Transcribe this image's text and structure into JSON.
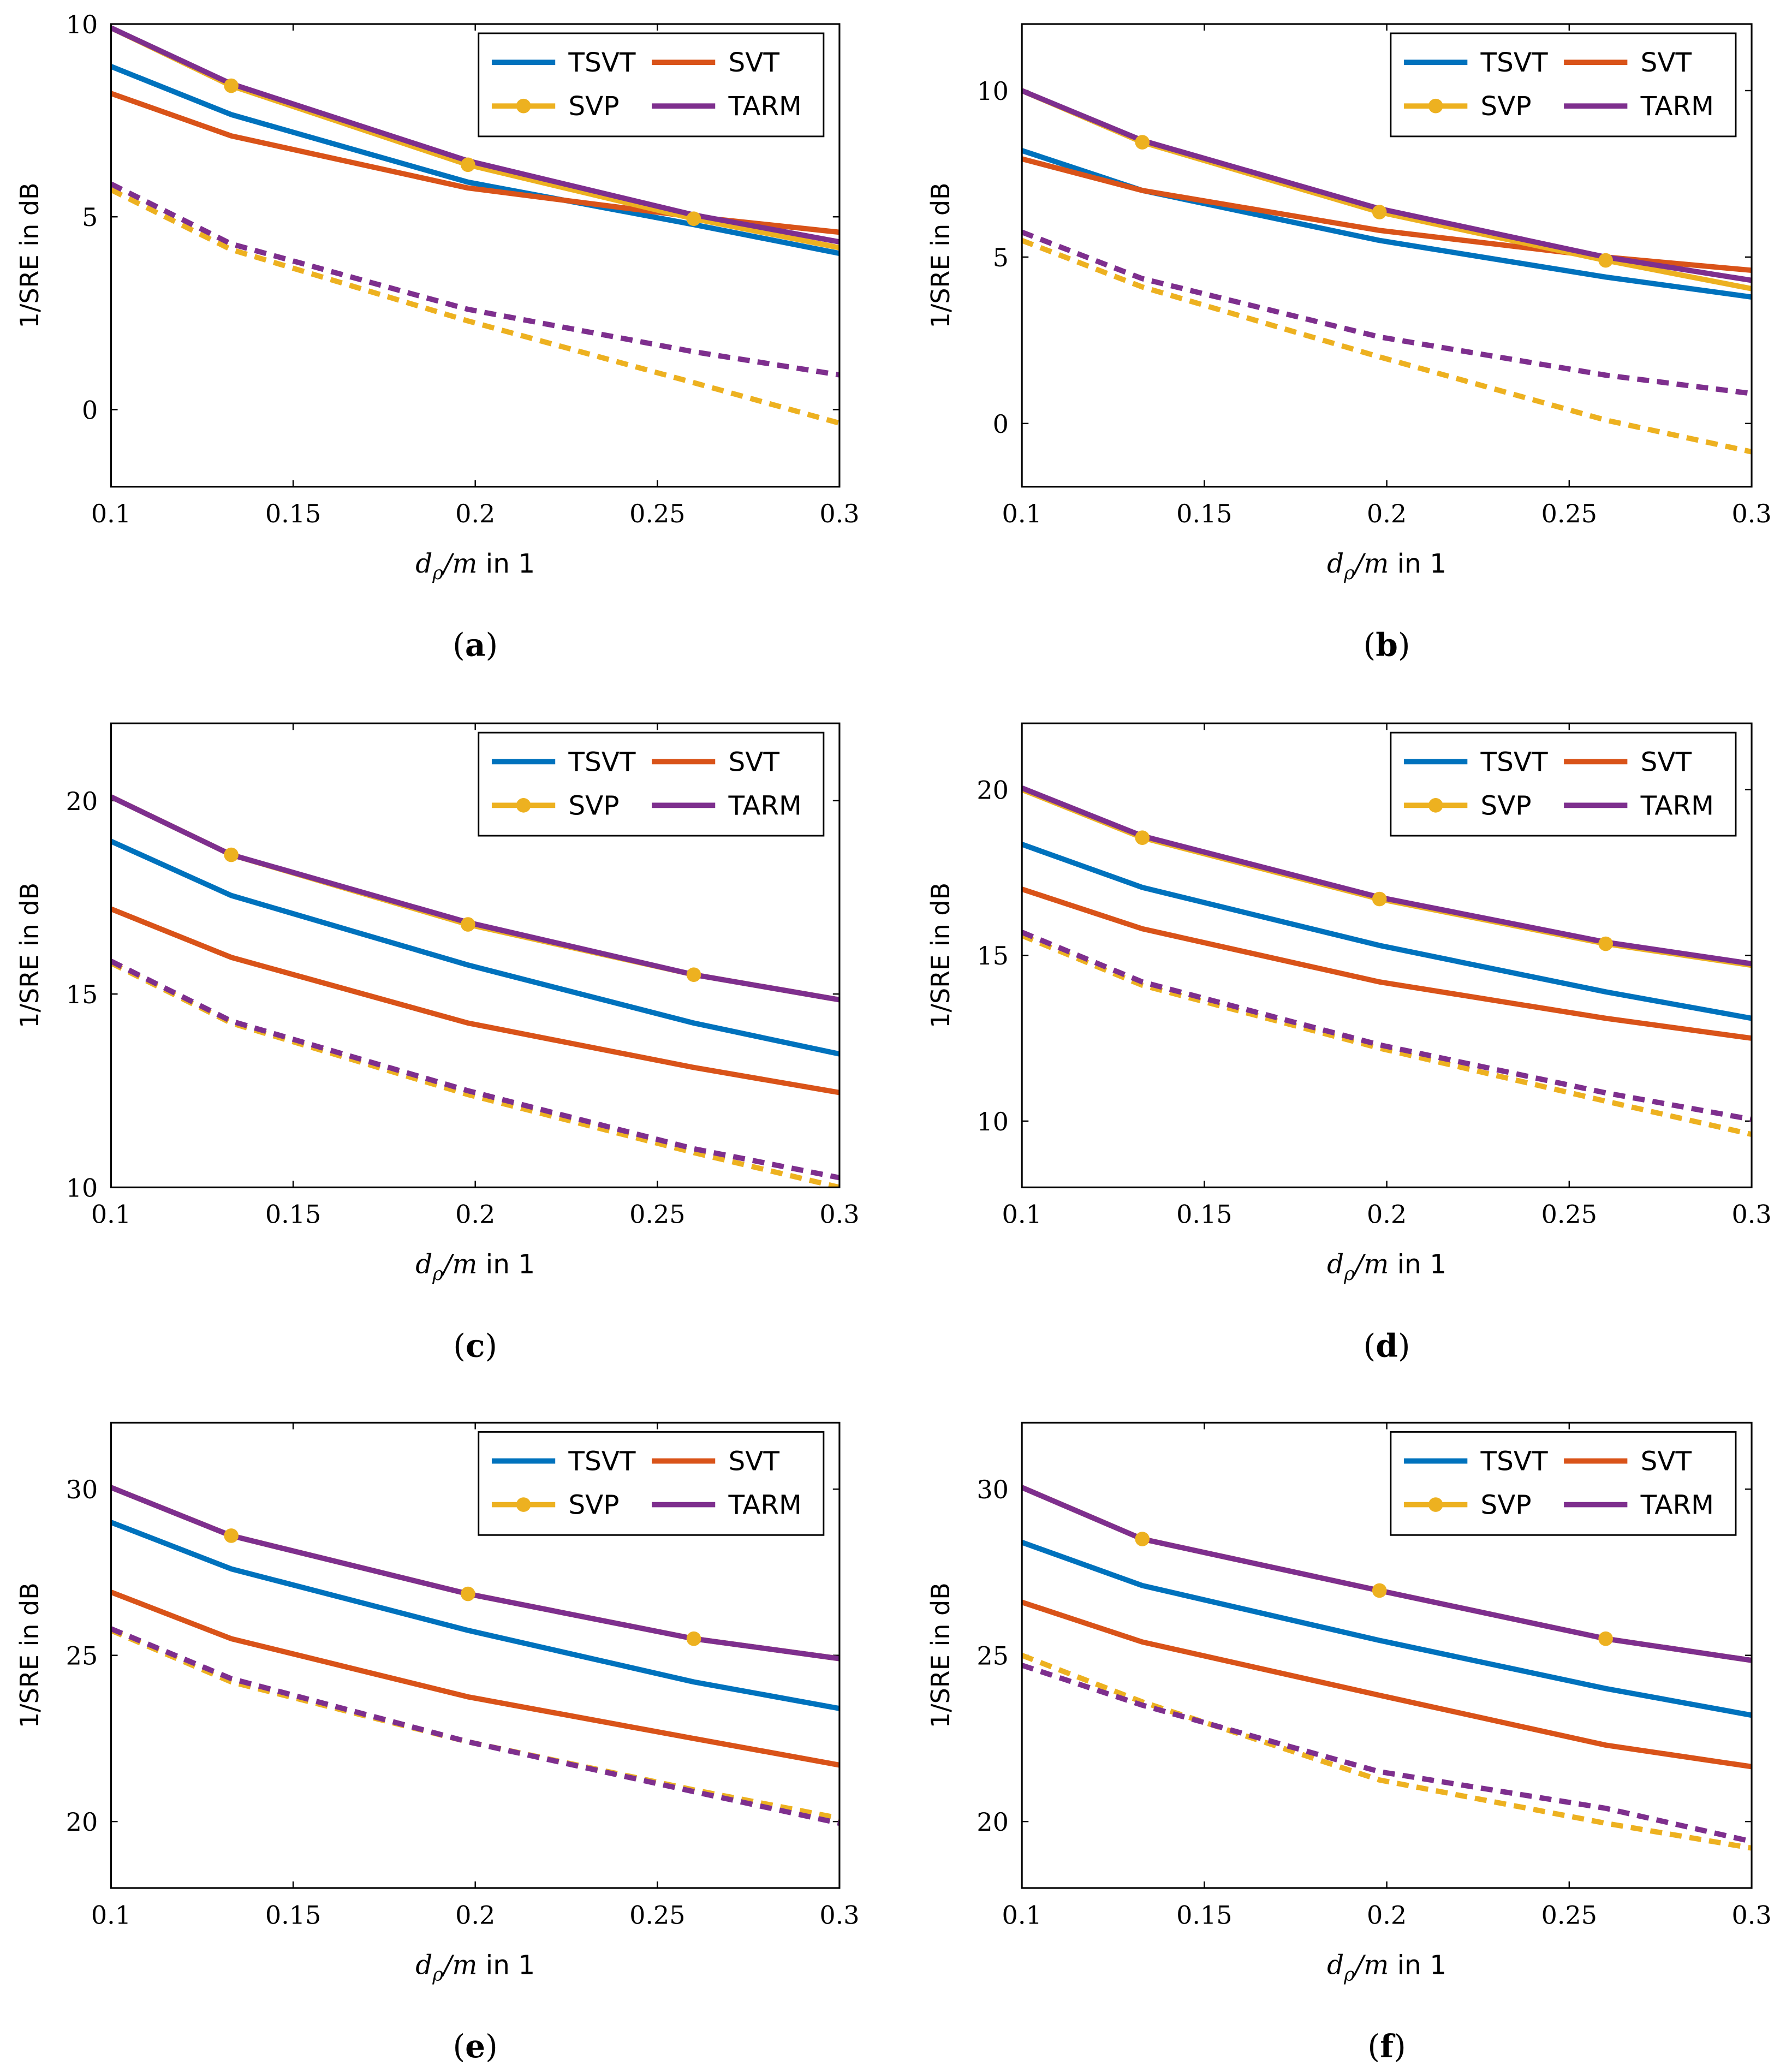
{
  "colors": {
    "TSVT": "#0072BD",
    "SVT": "#D95319",
    "SVP": "#EDB120",
    "TARM": "#7E2F8E"
  },
  "chart_data": [
    {
      "type": "line",
      "caption_letter": "a",
      "ylabel": "1/SRE in dB",
      "xlabel_parts": [
        "d",
        "ρ",
        "/m",
        " in 1"
      ],
      "xlim": [
        0.1,
        0.3
      ],
      "ylim": [
        -2,
        10
      ],
      "xticks": [
        0.1,
        0.15,
        0.2,
        0.25,
        0.3
      ],
      "xtick_labels": [
        "0.1",
        "0.15",
        "0.2",
        "0.25",
        "0.3"
      ],
      "yticks": [
        0,
        5,
        10
      ],
      "ytick_labels": [
        "0",
        "5",
        "10"
      ],
      "legend": [
        "TSVT",
        "SVT",
        "SVP",
        "TARM"
      ],
      "legend_placement": "top-right",
      "x": [
        0.1,
        0.133,
        0.198,
        0.26,
        0.3
      ],
      "series": [
        {
          "name": "TSVT",
          "style": "solid",
          "values": [
            8.9,
            7.65,
            5.9,
            4.8,
            4.05
          ]
        },
        {
          "name": "SVT",
          "style": "solid",
          "values": [
            8.2,
            7.1,
            5.75,
            5.0,
            4.6
          ]
        },
        {
          "name": "SVP",
          "style": "solid",
          "values": [
            9.9,
            8.4,
            6.35,
            4.95,
            4.2
          ]
        },
        {
          "name": "TARM",
          "style": "solid",
          "values": [
            9.9,
            8.45,
            6.45,
            5.05,
            4.35
          ]
        },
        {
          "name": "SVP",
          "style": "dashed",
          "values": [
            5.7,
            4.15,
            2.3,
            0.7,
            -0.35
          ]
        },
        {
          "name": "TARM",
          "style": "dashed",
          "values": [
            5.85,
            4.3,
            2.6,
            1.5,
            0.9
          ]
        }
      ]
    },
    {
      "type": "line",
      "caption_letter": "b",
      "ylabel": "1/SRE in dB",
      "xlabel_parts": [
        "d",
        "ρ",
        "/m",
        " in 1"
      ],
      "xlim": [
        0.1,
        0.3
      ],
      "ylim": [
        -1.9,
        12
      ],
      "xticks": [
        0.1,
        0.15,
        0.2,
        0.25,
        0.3
      ],
      "xtick_labels": [
        "0.1",
        "0.15",
        "0.2",
        "0.25",
        "0.3"
      ],
      "yticks": [
        0,
        5,
        10
      ],
      "ytick_labels": [
        "0",
        "5",
        "10"
      ],
      "legend": [
        "TSVT",
        "SVT",
        "SVP",
        "TARM"
      ],
      "legend_placement": "top-right",
      "x": [
        0.1,
        0.133,
        0.198,
        0.26,
        0.3
      ],
      "series": [
        {
          "name": "TSVT",
          "style": "solid",
          "values": [
            8.2,
            7.0,
            5.5,
            4.4,
            3.8
          ]
        },
        {
          "name": "SVT",
          "style": "solid",
          "values": [
            7.95,
            7.0,
            5.8,
            5.0,
            4.6
          ]
        },
        {
          "name": "SVP",
          "style": "solid",
          "values": [
            10.0,
            8.45,
            6.35,
            4.9,
            4.05
          ]
        },
        {
          "name": "TARM",
          "style": "solid",
          "values": [
            10.0,
            8.5,
            6.45,
            5.0,
            4.3
          ]
        },
        {
          "name": "SVP",
          "style": "dashed",
          "values": [
            5.5,
            4.1,
            2.0,
            0.1,
            -0.85
          ]
        },
        {
          "name": "TARM",
          "style": "dashed",
          "values": [
            5.75,
            4.35,
            2.6,
            1.45,
            0.9
          ]
        }
      ]
    },
    {
      "type": "line",
      "caption_letter": "c",
      "ylabel": "1/SRE in dB",
      "xlabel_parts": [
        "d",
        "ρ",
        "/m",
        " in 1"
      ],
      "xlim": [
        0.1,
        0.3
      ],
      "ylim": [
        10,
        22
      ],
      "xticks": [
        0.1,
        0.15,
        0.2,
        0.25,
        0.3
      ],
      "xtick_labels": [
        "0.1",
        "0.15",
        "0.2",
        "0.25",
        "0.3"
      ],
      "yticks": [
        10,
        15,
        20
      ],
      "ytick_labels": [
        "10",
        "15",
        "20"
      ],
      "legend": [
        "TSVT",
        "SVT",
        "SVP",
        "TARM"
      ],
      "legend_placement": "top-right",
      "x": [
        0.1,
        0.133,
        0.198,
        0.26,
        0.3
      ],
      "series": [
        {
          "name": "TSVT",
          "style": "solid",
          "values": [
            18.95,
            17.55,
            15.75,
            14.25,
            13.45
          ]
        },
        {
          "name": "SVT",
          "style": "solid",
          "values": [
            17.2,
            15.95,
            14.25,
            13.1,
            12.45
          ]
        },
        {
          "name": "SVP",
          "style": "solid",
          "values": [
            20.1,
            18.6,
            16.8,
            15.5,
            14.85
          ]
        },
        {
          "name": "TARM",
          "style": "solid",
          "values": [
            20.1,
            18.6,
            16.85,
            15.5,
            14.85
          ]
        },
        {
          "name": "SVP",
          "style": "dashed",
          "values": [
            15.8,
            14.25,
            12.4,
            10.9,
            10.0
          ]
        },
        {
          "name": "TARM",
          "style": "dashed",
          "values": [
            15.85,
            14.3,
            12.5,
            11.0,
            10.25
          ]
        }
      ]
    },
    {
      "type": "line",
      "caption_letter": "d",
      "ylabel": "1/SRE in dB",
      "xlabel_parts": [
        "d",
        "ρ",
        "/m",
        " in 1"
      ],
      "xlim": [
        0.1,
        0.3
      ],
      "ylim": [
        8,
        22
      ],
      "xticks": [
        0.1,
        0.15,
        0.2,
        0.25,
        0.3
      ],
      "xtick_labels": [
        "0.1",
        "0.15",
        "0.2",
        "0.25",
        "0.3"
      ],
      "yticks": [
        10,
        15,
        20
      ],
      "ytick_labels": [
        "10",
        "15",
        "20"
      ],
      "legend": [
        "TSVT",
        "SVT",
        "SVP",
        "TARM"
      ],
      "legend_placement": "top-right",
      "x": [
        0.1,
        0.133,
        0.198,
        0.26,
        0.3
      ],
      "series": [
        {
          "name": "TSVT",
          "style": "solid",
          "values": [
            18.35,
            17.05,
            15.3,
            13.9,
            13.1
          ]
        },
        {
          "name": "SVT",
          "style": "solid",
          "values": [
            17.0,
            15.8,
            14.2,
            13.1,
            12.5
          ]
        },
        {
          "name": "SVP",
          "style": "solid",
          "values": [
            20.0,
            18.55,
            16.7,
            15.35,
            14.7
          ]
        },
        {
          "name": "TARM",
          "style": "solid",
          "values": [
            20.05,
            18.6,
            16.75,
            15.4,
            14.75
          ]
        },
        {
          "name": "SVP",
          "style": "dashed",
          "values": [
            15.6,
            14.1,
            12.2,
            10.6,
            9.6
          ]
        },
        {
          "name": "TARM",
          "style": "dashed",
          "values": [
            15.7,
            14.2,
            12.3,
            10.85,
            10.05
          ]
        }
      ]
    },
    {
      "type": "line",
      "caption_letter": "e",
      "ylabel": "1/SRE in dB",
      "xlabel_parts": [
        "d",
        "ρ",
        "/m",
        " in 1"
      ],
      "xlim": [
        0.1,
        0.3
      ],
      "ylim": [
        18,
        32
      ],
      "xticks": [
        0.1,
        0.15,
        0.2,
        0.25,
        0.3
      ],
      "xtick_labels": [
        "0.1",
        "0.15",
        "0.2",
        "0.25",
        "0.3"
      ],
      "yticks": [
        20,
        25,
        30
      ],
      "ytick_labels": [
        "20",
        "25",
        "30"
      ],
      "legend": [
        "TSVT",
        "SVT",
        "SVP",
        "TARM"
      ],
      "legend_placement": "top-right",
      "x": [
        0.1,
        0.133,
        0.198,
        0.26,
        0.3
      ],
      "series": [
        {
          "name": "TSVT",
          "style": "solid",
          "values": [
            29.0,
            27.6,
            25.75,
            24.2,
            23.4
          ]
        },
        {
          "name": "SVT",
          "style": "solid",
          "values": [
            26.9,
            25.5,
            23.75,
            22.5,
            21.7
          ]
        },
        {
          "name": "SVP",
          "style": "solid",
          "values": [
            30.05,
            28.6,
            26.85,
            25.5,
            24.9
          ]
        },
        {
          "name": "TARM",
          "style": "solid",
          "values": [
            30.05,
            28.6,
            26.85,
            25.5,
            24.9
          ]
        },
        {
          "name": "SVP",
          "style": "dashed",
          "values": [
            25.75,
            24.2,
            22.4,
            20.95,
            20.1
          ]
        },
        {
          "name": "TARM",
          "style": "dashed",
          "values": [
            25.8,
            24.3,
            22.4,
            20.9,
            19.95
          ]
        }
      ]
    },
    {
      "type": "line",
      "caption_letter": "f",
      "ylabel": "1/SRE in dB",
      "xlabel_parts": [
        "d",
        "ρ",
        "/m",
        " in 1"
      ],
      "xlim": [
        0.1,
        0.3
      ],
      "ylim": [
        18,
        32
      ],
      "xticks": [
        0.1,
        0.15,
        0.2,
        0.25,
        0.3
      ],
      "xtick_labels": [
        "0.1",
        "0.15",
        "0.2",
        "0.25",
        "0.3"
      ],
      "yticks": [
        20,
        25,
        30
      ],
      "ytick_labels": [
        "20",
        "25",
        "30"
      ],
      "legend": [
        "TSVT",
        "SVT",
        "SVP",
        "TARM"
      ],
      "legend_placement": "top-right",
      "x": [
        0.1,
        0.133,
        0.198,
        0.26,
        0.3
      ],
      "series": [
        {
          "name": "TSVT",
          "style": "solid",
          "values": [
            28.4,
            27.1,
            25.45,
            24.0,
            23.2
          ]
        },
        {
          "name": "SVT",
          "style": "solid",
          "values": [
            26.6,
            25.4,
            23.8,
            22.3,
            21.65
          ]
        },
        {
          "name": "SVP",
          "style": "solid",
          "values": [
            30.05,
            28.5,
            26.95,
            25.5,
            24.85
          ]
        },
        {
          "name": "TARM",
          "style": "solid",
          "values": [
            30.05,
            28.5,
            26.95,
            25.5,
            24.85
          ]
        },
        {
          "name": "SVP",
          "style": "dashed",
          "values": [
            25.0,
            23.6,
            21.25,
            19.95,
            19.2
          ]
        },
        {
          "name": "TARM",
          "style": "dashed",
          "values": [
            24.7,
            23.5,
            21.5,
            20.4,
            19.4
          ]
        }
      ]
    }
  ]
}
